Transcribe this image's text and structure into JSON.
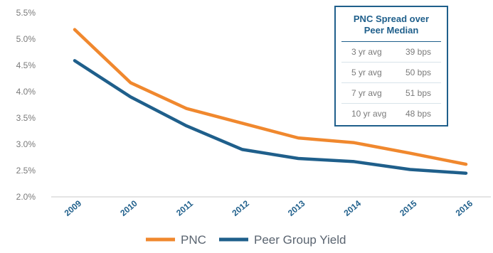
{
  "chart_data": {
    "type": "line",
    "categories": [
      "2009",
      "2010",
      "2011",
      "2012",
      "2013",
      "2014",
      "2015",
      "2016"
    ],
    "series": [
      {
        "name": "PNC",
        "color": "#f0882e",
        "values": [
          5.18,
          4.17,
          3.68,
          3.4,
          3.12,
          3.03,
          2.83,
          2.62
        ]
      },
      {
        "name": "Peer Group Yield",
        "color": "#1f5f8b",
        "values": [
          4.59,
          3.9,
          3.35,
          2.9,
          2.73,
          2.67,
          2.52,
          2.45
        ]
      }
    ],
    "yticks": [
      "2.0%",
      "2.5%",
      "3.0%",
      "3.5%",
      "4.0%",
      "4.5%",
      "5.0%",
      "5.5%"
    ],
    "ylim": [
      2.0,
      5.5
    ],
    "grid": false,
    "legend_position": "bottom"
  },
  "spread_table": {
    "title_line1": "PNC Spread over",
    "title_line2": "Peer Median",
    "rows": [
      {
        "label": "3 yr avg",
        "value": "39 bps"
      },
      {
        "label": "5 yr avg",
        "value": "50 bps"
      },
      {
        "label": "7 yr avg",
        "value": "51 bps"
      },
      {
        "label": "10 yr avg",
        "value": "48 bps"
      }
    ]
  }
}
